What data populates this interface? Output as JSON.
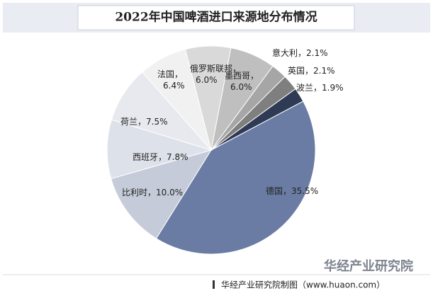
{
  "chart_data": {
    "type": "pie",
    "title": "2022年中国啤酒进口来源地分布情况",
    "categories": [
      "德国",
      "比利时",
      "西班牙",
      "荷兰",
      "法国",
      "俄罗斯联邦",
      "墨西哥",
      "意大利",
      "英国",
      "波兰"
    ],
    "values": [
      35.5,
      10.0,
      7.8,
      7.5,
      6.4,
      6.0,
      6.0,
      2.1,
      2.1,
      1.9
    ],
    "value_labels": [
      "35.5%",
      "10.0%",
      "7.8%",
      "7.5%",
      "6.4%",
      "6.0%",
      "6.0%",
      "2.1%",
      "2.1%",
      "1.9%"
    ],
    "label_separator": "，",
    "colors": [
      "#6a7ca3",
      "#c5cbd9",
      "#dde1ea",
      "#e7e9ef",
      "#f1f1f1",
      "#d9d9d9",
      "#bfbfbf",
      "#a6a6a6",
      "#7f7f7f",
      "#2f3a55"
    ],
    "source": "华经产业研究院制图（www.huaon.com）",
    "watermark": "华经产业研究院"
  }
}
